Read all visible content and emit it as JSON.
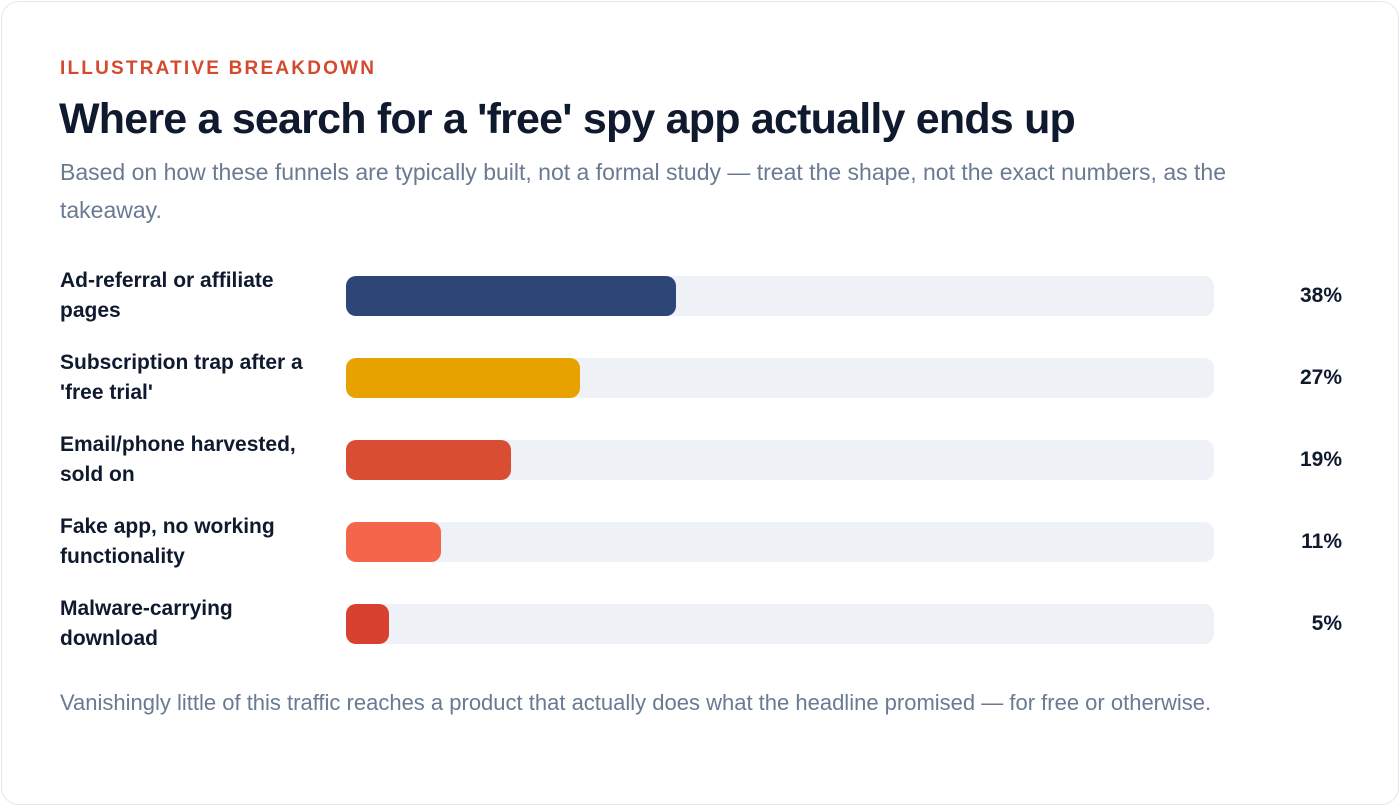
{
  "card": {
    "eyebrow": "ILLUSTRATIVE BREAKDOWN",
    "title": "Where a search for a 'free' spy app actually ends up",
    "subtitle": "Based on how these funnels are typically built, not a formal study — treat the shape, not the exact numbers, as the takeaway.",
    "footnote": "Vanishingly little of this traffic reaches a product that actually does what the headline promised — for free or otherwise."
  },
  "chart_data": {
    "type": "bar",
    "orientation": "horizontal",
    "categories": [
      "Ad-referral or affiliate pages",
      "Subscription trap after a 'free trial'",
      "Email/phone harvested, sold on",
      "Fake app, no working functionality",
      "Malware-carrying download"
    ],
    "values": [
      38,
      27,
      19,
      11,
      5
    ],
    "value_labels": [
      "38%",
      "27%",
      "19%",
      "11%",
      "5%"
    ],
    "colors": [
      "#2e4577",
      "#e8a200",
      "#d94e33",
      "#f4654b",
      "#d84030"
    ],
    "track_color": "#eef1f6",
    "xlim": [
      0,
      100
    ],
    "grid": false,
    "legend": "none"
  }
}
